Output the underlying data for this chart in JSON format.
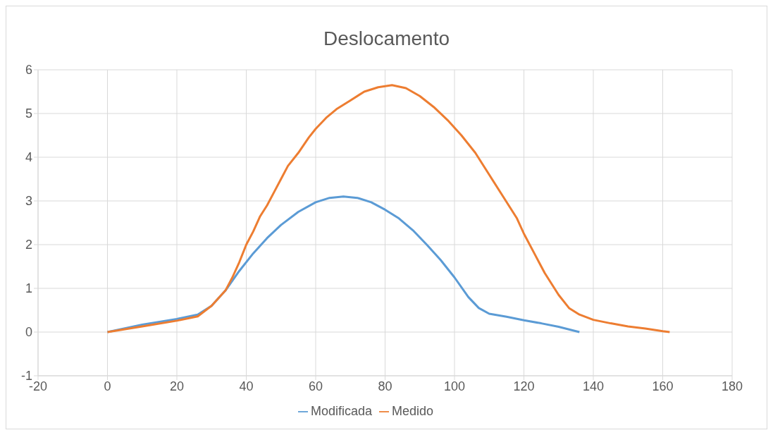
{
  "chart_data": {
    "type": "line",
    "title": "Deslocamento",
    "xlim": [
      -20,
      180
    ],
    "xticks": [
      -20,
      0,
      20,
      40,
      60,
      80,
      100,
      120,
      140,
      160,
      180
    ],
    "ylim": [
      -1,
      6
    ],
    "yticks": [
      -1,
      0,
      1,
      2,
      3,
      4,
      5,
      6
    ],
    "grid": true,
    "legend": "bottom",
    "marker": "none",
    "line_style": "solid",
    "series": [
      {
        "name": "Modificada",
        "color": "#5b9bd5",
        "x": [
          0,
          10,
          20,
          26,
          30,
          34,
          38,
          42,
          46,
          50,
          55,
          60,
          64,
          68,
          72,
          76,
          80,
          84,
          88,
          92,
          96,
          100,
          104,
          107,
          110,
          115,
          120,
          125,
          130,
          136
        ],
        "values": [
          0,
          0.17,
          0.3,
          0.4,
          0.6,
          0.95,
          1.4,
          1.8,
          2.15,
          2.45,
          2.75,
          2.97,
          3.07,
          3.1,
          3.07,
          2.97,
          2.8,
          2.6,
          2.33,
          2.0,
          1.65,
          1.25,
          0.8,
          0.55,
          0.42,
          0.35,
          0.27,
          0.2,
          0.12,
          0
        ]
      },
      {
        "name": "Medido",
        "color": "#ed7d31",
        "x": [
          0,
          10,
          20,
          26,
          30,
          34,
          36,
          38,
          40,
          42,
          44,
          46,
          48,
          50,
          52,
          55,
          58,
          60,
          63,
          66,
          70,
          74,
          78,
          82,
          86,
          90,
          94,
          98,
          102,
          106,
          110,
          114,
          118,
          120,
          123,
          126,
          130,
          133,
          136,
          140,
          145,
          150,
          155,
          160,
          162
        ],
        "values": [
          0,
          0.13,
          0.26,
          0.36,
          0.6,
          0.95,
          1.25,
          1.6,
          2.0,
          2.3,
          2.65,
          2.9,
          3.2,
          3.5,
          3.8,
          4.1,
          4.45,
          4.65,
          4.9,
          5.1,
          5.3,
          5.5,
          5.6,
          5.65,
          5.58,
          5.4,
          5.15,
          4.85,
          4.5,
          4.1,
          3.6,
          3.1,
          2.6,
          2.25,
          1.8,
          1.35,
          0.85,
          0.55,
          0.4,
          0.28,
          0.2,
          0.13,
          0.08,
          0.02,
          0
        ]
      }
    ]
  }
}
